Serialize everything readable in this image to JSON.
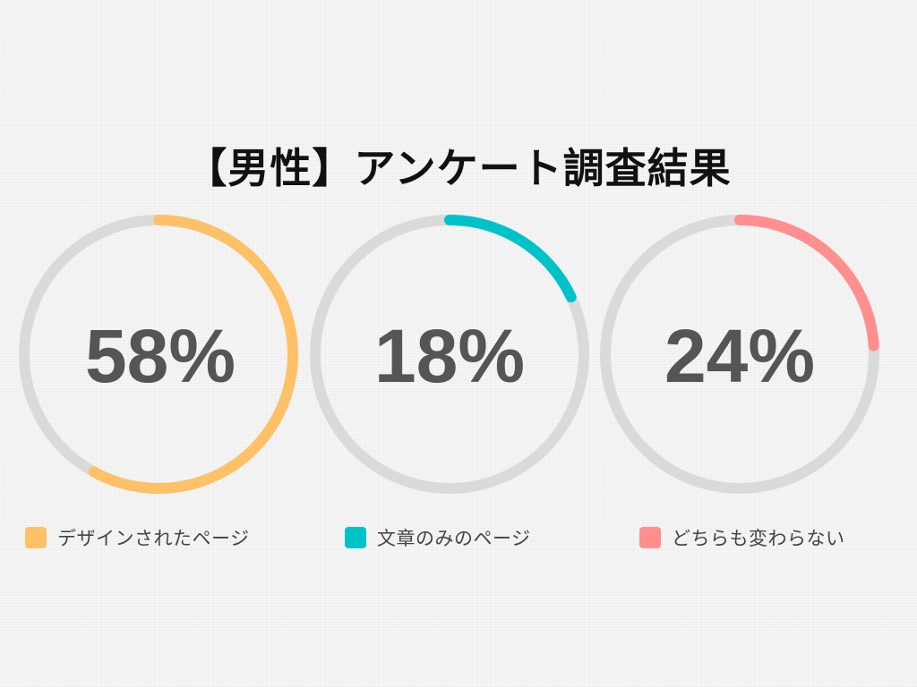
{
  "title": "【男性】アンケート調査結果",
  "chart_data": {
    "type": "pie",
    "style": "donut",
    "title": "【男性】アンケート調査結果",
    "categories": [
      "デザインされたページ",
      "文章のみのページ",
      "どちらも変わらない"
    ],
    "values": [
      58,
      18,
      24
    ],
    "value_labels": [
      "58%",
      "18%",
      "24%"
    ],
    "colors": [
      "#FEC168",
      "#00C3CA",
      "#FF8F8F"
    ],
    "track_color": "#DADADA",
    "legend_position": "bottom"
  }
}
